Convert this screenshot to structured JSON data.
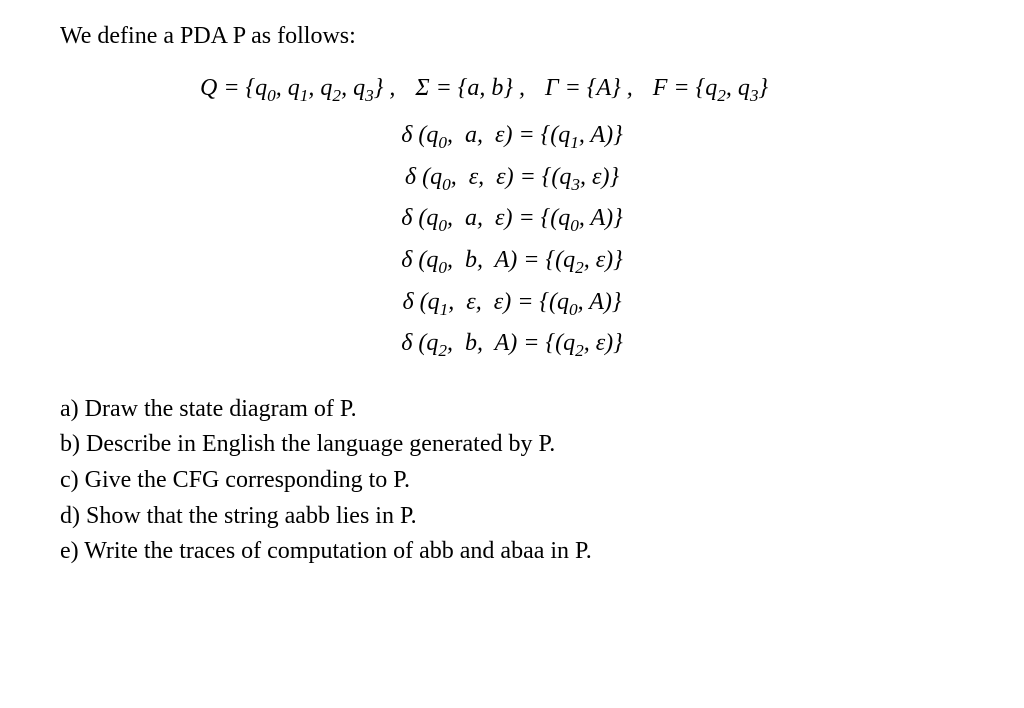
{
  "document": {
    "font_family": "Times New Roman",
    "text_color": "#000000",
    "background_color": "#ffffff",
    "base_fontsize_pt": 18
  },
  "intro": "We define a PDA P as follows:",
  "sets": {
    "Q_label": "Q",
    "Q_members": "q₀, q₁, q₂, q₃",
    "Sigma_label": "Σ",
    "Sigma_members": "a, b",
    "Gamma_label": "Γ",
    "Gamma_members": "A",
    "F_label": "F",
    "F_members": "q₂, q₃"
  },
  "transitions": [
    {
      "from": "q₀",
      "input": "a",
      "stack": "ε",
      "to": "q₁",
      "push": "A"
    },
    {
      "from": "q₀",
      "input": "ε",
      "stack": "ε",
      "to": "q₃",
      "push": "ε"
    },
    {
      "from": "q₀",
      "input": "a",
      "stack": "ε",
      "to": "q₀",
      "push": "A"
    },
    {
      "from": "q₀",
      "input": "b",
      "stack": "A",
      "to": "q₂",
      "push": "ε"
    },
    {
      "from": "q₁",
      "input": "ε",
      "stack": "ε",
      "to": "q₀",
      "push": "A"
    },
    {
      "from": "q₂",
      "input": "b",
      "stack": "A",
      "to": "q₂",
      "push": "ε"
    }
  ],
  "questions": {
    "a": "a) Draw the state diagram of P.",
    "b": "b) Describe in English the language generated by P.",
    "c": "c) Give the CFG corresponding to P.",
    "d": "d) Show that the string aabb lies in P.",
    "e": "e) Write the traces of computation of abb and abaa in P."
  }
}
